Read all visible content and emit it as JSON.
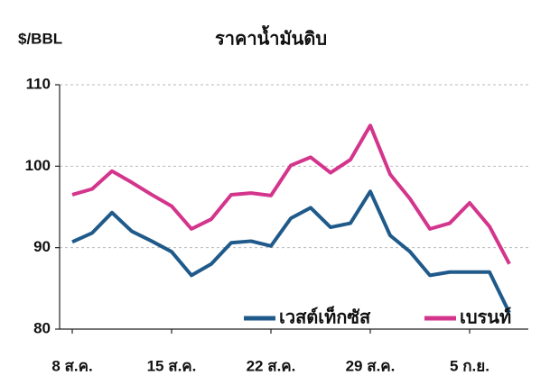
{
  "chart_data": {
    "type": "line",
    "title": "ราคาน้ำมันดิบ",
    "y_label": "$/BBL",
    "categories": [
      "8 ส.ค.",
      null,
      null,
      null,
      null,
      "15 ส.ค.",
      null,
      null,
      null,
      null,
      "22 ส.ค.",
      null,
      null,
      null,
      null,
      "29 ส.ค.",
      null,
      null,
      null,
      null,
      "5 ก.ย.",
      null,
      null
    ],
    "series": [
      {
        "name": "เวสต์เท็กซัส",
        "color": "#1f5a8a",
        "values": [
          90.7,
          91.8,
          94.3,
          92.0,
          90.8,
          89.5,
          86.6,
          88.0,
          90.6,
          90.8,
          90.2,
          93.6,
          94.9,
          92.5,
          93.0,
          96.9,
          91.5,
          89.5,
          86.6,
          87.0,
          87.0,
          87.0,
          82.0
        ]
      },
      {
        "name": "เบรนท์",
        "color": "#d4358c",
        "values": [
          96.5,
          97.2,
          99.4,
          98.0,
          96.5,
          95.1,
          92.3,
          93.5,
          96.5,
          96.7,
          96.4,
          100.1,
          101.1,
          99.2,
          100.8,
          105.0,
          99.0,
          96.0,
          92.3,
          93.0,
          95.5,
          92.6,
          88.0
        ]
      }
    ],
    "ylim": [
      80,
      110
    ],
    "yticks": [
      80,
      90,
      100,
      110
    ],
    "grid": true
  }
}
